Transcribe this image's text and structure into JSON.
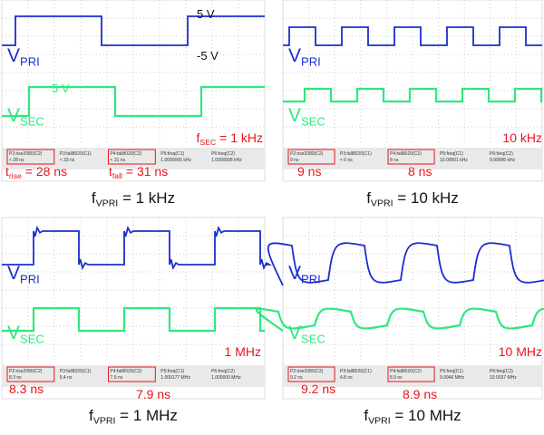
{
  "panels": [
    {
      "caption": {
        "main": "f",
        "sub": "VPRI",
        "rest": " = 1 kHz"
      },
      "pri_label": {
        "main": "V",
        "sub": "PRI"
      },
      "sec_label": {
        "main": "V",
        "sub": "SEC"
      },
      "scope_labels": [
        "5 V",
        "-5 V",
        "5 V"
      ],
      "measurements": [
        {
          "name": "P2:rise2080(C2)",
          "value": "< 28 ns"
        },
        {
          "name": "P3:fall8020(C1)",
          "value": "< 33 ns"
        },
        {
          "name": "P4:fall8020(C2)",
          "value": "< 31 ns"
        },
        {
          "name": "P5:freq(C1)",
          "value": "1.0000006 kHz"
        },
        {
          "name": "P6:freq(C2)",
          "value": "1.0000008 kHz"
        }
      ],
      "annotations": [
        {
          "main": "f",
          "sub": "SEC",
          "rest": " = 1 kHz"
        },
        {
          "main": "t",
          "sub": "rise",
          "rest": " = 28 ns"
        },
        {
          "main": "t",
          "sub": "fall",
          "rest": " = 31 ns"
        }
      ]
    },
    {
      "caption": {
        "main": "f",
        "sub": "VPRI",
        "rest": " = 10 kHz"
      },
      "pri_label": {
        "main": "V",
        "sub": "PRI"
      },
      "sec_label": {
        "main": "V",
        "sub": "SEC"
      },
      "measurements": [
        {
          "name": "P2:rise2080(C2)",
          "value": "9 ns"
        },
        {
          "name": "P3:fall8020(C1)",
          "value": "< 6 ns"
        },
        {
          "name": "P4:fall8020(C2)",
          "value": "8 ns"
        },
        {
          "name": "P5:freq(C1)",
          "value": "10.00001 kHz"
        },
        {
          "name": "P6:freq(C2)",
          "value": "9.99996 kHz"
        }
      ],
      "annotations": [
        {
          "main": "10 kHz"
        },
        {
          "main": "9 ns"
        },
        {
          "main": "8 ns"
        }
      ]
    },
    {
      "caption": {
        "main": "f",
        "sub": "VPRI",
        "rest": " = 1 MHz"
      },
      "pri_label": {
        "main": "V",
        "sub": "PRI"
      },
      "sec_label": {
        "main": "V",
        "sub": "SEC"
      },
      "measurements": [
        {
          "name": "P2:rise2080(C2)",
          "value": "8.3 ns"
        },
        {
          "name": "P3:fall8020(C1)",
          "value": "5.4 ns"
        },
        {
          "name": "P4:fall8020(C2)",
          "value": "7.9 ns"
        },
        {
          "name": "P5:freq(C1)",
          "value": "1.000177 MHz"
        },
        {
          "name": "P6:freq(C2)",
          "value": "1.000000 MHz"
        }
      ],
      "annotations": [
        {
          "main": "1 MHz"
        },
        {
          "main": "8.3 ns"
        },
        {
          "main": "7.9 ns"
        }
      ]
    },
    {
      "caption": {
        "main": "f",
        "sub": "VPRI",
        "rest": " = 10 MHz"
      },
      "pri_label": {
        "main": "V",
        "sub": "PRI"
      },
      "sec_label": {
        "main": "V",
        "sub": "SEC"
      },
      "measurements": [
        {
          "name": "P2:rise2080(C2)",
          "value": "9.2 ns"
        },
        {
          "name": "P3:fall8020(C1)",
          "value": "4.8 ns"
        },
        {
          "name": "P4:fall8020(C2)",
          "value": "8.9 ns"
        },
        {
          "name": "P5:freq(C1)",
          "value": "9.9946 MHz"
        },
        {
          "name": "P6:freq(C2)",
          "value": "10.0037 MHz"
        }
      ],
      "annotations": [
        {
          "main": "10 MHz"
        },
        {
          "main": "9.2 ns"
        },
        {
          "main": "8.9 ns"
        }
      ]
    }
  ]
}
